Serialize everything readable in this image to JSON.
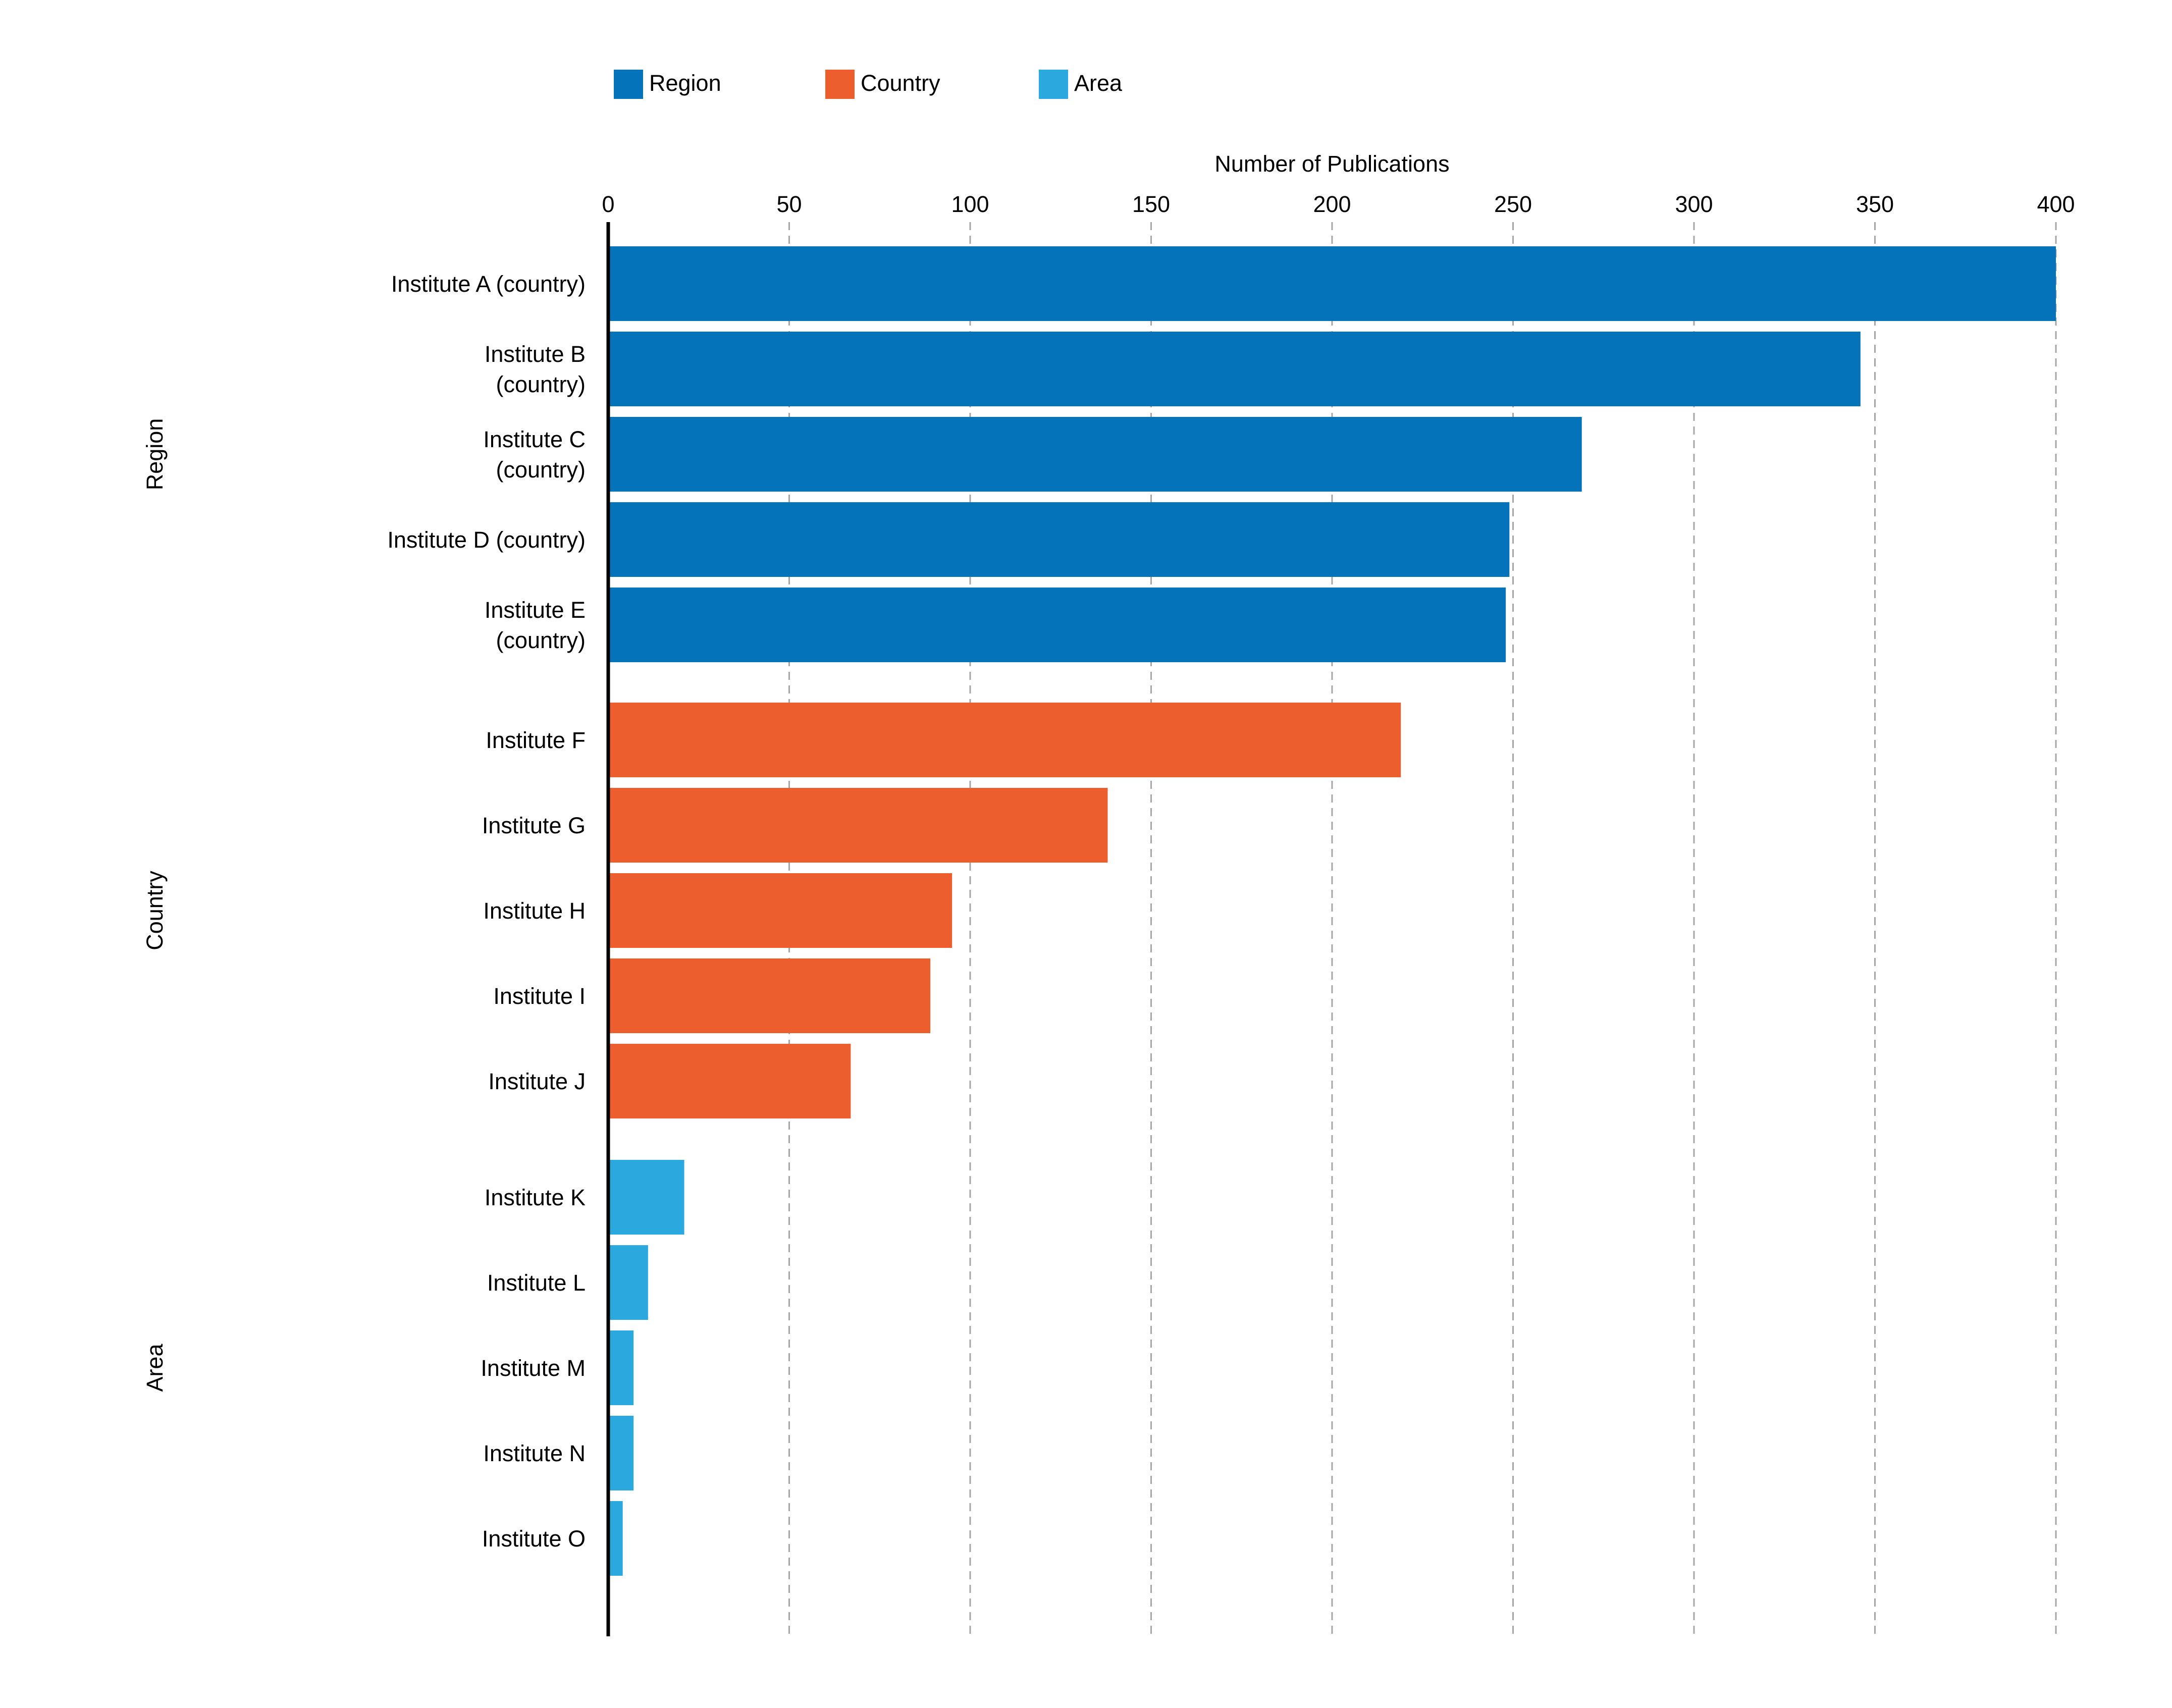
{
  "chart_data": {
    "type": "bar",
    "orientation": "horizontal",
    "xlabel": "Number of Publications",
    "xlim": [
      0,
      400
    ],
    "xticks": [
      0,
      50,
      100,
      150,
      200,
      250,
      300,
      350,
      400
    ],
    "grid": "vertical dashed",
    "legend_placement": "top-left",
    "legend": [
      {
        "label": "Region",
        "color": "#0473b9"
      },
      {
        "label": "Country",
        "color": "#ec5e2d"
      },
      {
        "label": "Area",
        "color": "#2ba8de"
      }
    ],
    "groups": [
      {
        "name": "Region",
        "color": "#0473b9",
        "bars": [
          {
            "label": [
              "Institute A (country)"
            ],
            "value": 400
          },
          {
            "label": [
              "Institute B",
              "(country)"
            ],
            "value": 346
          },
          {
            "label": [
              "Institute C",
              "(country)"
            ],
            "value": 269
          },
          {
            "label": [
              "Institute D (country)"
            ],
            "value": 249
          },
          {
            "label": [
              "Institute E",
              "(country)"
            ],
            "value": 248
          }
        ]
      },
      {
        "name": "Country",
        "color": "#ec5e2d",
        "bars": [
          {
            "label": [
              "Institute F"
            ],
            "value": 219
          },
          {
            "label": [
              "Institute G"
            ],
            "value": 138
          },
          {
            "label": [
              "Institute H"
            ],
            "value": 95
          },
          {
            "label": [
              "Institute I"
            ],
            "value": 89
          },
          {
            "label": [
              "Institute J"
            ],
            "value": 67
          }
        ]
      },
      {
        "name": "Area",
        "color": "#2ba8de",
        "bars": [
          {
            "label": [
              "Institute K"
            ],
            "value": 21
          },
          {
            "label": [
              "Institute L"
            ],
            "value": 11
          },
          {
            "label": [
              "Institute M"
            ],
            "value": 7
          },
          {
            "label": [
              "Institute N"
            ],
            "value": 7
          },
          {
            "label": [
              "Institute O"
            ],
            "value": 4
          }
        ]
      }
    ]
  }
}
